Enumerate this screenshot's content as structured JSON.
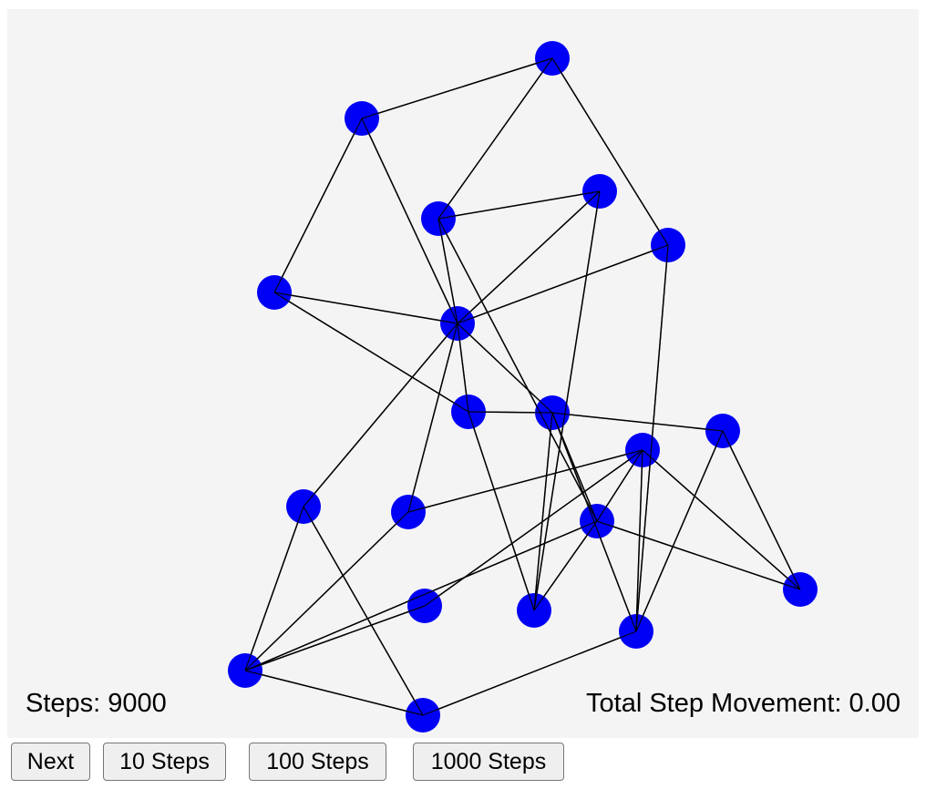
{
  "stats": {
    "steps_label": "Steps: 9000",
    "movement_label": "Total Step Movement: 0.00"
  },
  "buttons": {
    "next": "Next",
    "steps_10": "10 Steps",
    "steps_100": "100 Steps",
    "steps_1000": "1000 Steps"
  },
  "colors": {
    "canvas_background": "#f4f4f5",
    "node_fill": "#0000f5",
    "edge_stroke": "#000000"
  },
  "graph": {
    "node_count": 19,
    "edge_count": 40
  }
}
